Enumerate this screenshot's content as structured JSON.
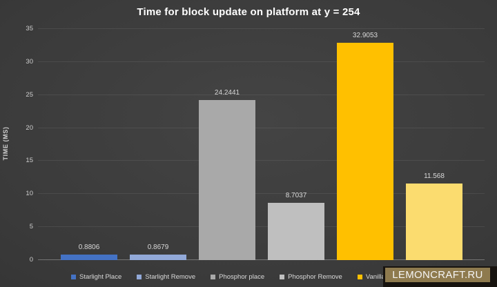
{
  "title": "Time for block update on platform at y = 254",
  "chart_data": {
    "type": "bar",
    "categories": [
      "Starlight Place",
      "Starlight Remove",
      "Phosphor place",
      "Phosphor Remove",
      "Vanilla place",
      ""
    ],
    "values": [
      0.8806,
      0.8679,
      24.2441,
      8.7037,
      32.9053,
      11.568
    ],
    "value_labels": [
      "0.8806",
      "0.8679",
      "24.2441",
      "8.7037",
      "32.9053",
      "11.568"
    ],
    "colors": [
      "#4472C4",
      "#92A9D8",
      "#A9A9A9",
      "#BFBFBF",
      "#FFC000",
      "#FBDC6F"
    ],
    "title": "Time for block update on platform at y = 254",
    "xlabel": "",
    "ylabel": "TIME (MS)",
    "ylim": [
      0,
      35
    ],
    "yticks": [
      0,
      5,
      10,
      15,
      20,
      25,
      30,
      35
    ],
    "grid": true,
    "legend_position": "bottom"
  },
  "y_axis": {
    "label": "TIME (MS)",
    "ticks": [
      "0",
      "5",
      "10",
      "15",
      "20",
      "25",
      "30",
      "35"
    ]
  },
  "legend": {
    "items": [
      {
        "label": "Starlight Place",
        "color": "#4472C4"
      },
      {
        "label": "Starlight Remove",
        "color": "#92A9D8"
      },
      {
        "label": "Phosphor place",
        "color": "#A9A9A9"
      },
      {
        "label": "Phosphor Remove",
        "color": "#BFBFBF"
      },
      {
        "label": "Vanilla place",
        "color": "#FFC000"
      },
      {
        "label": "",
        "color": "#FBDC6F"
      }
    ]
  },
  "watermark": {
    "text": "LEMONCRAFT.RU",
    "outer_color": "#17130F",
    "inner_color": "#8E7A4E"
  }
}
